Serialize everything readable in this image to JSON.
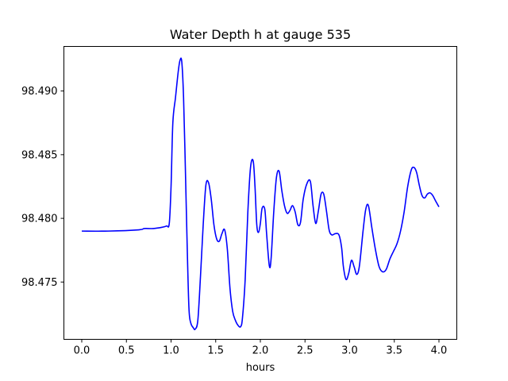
{
  "chart_data": {
    "type": "line",
    "title": "Water Depth h at gauge 535",
    "xlabel": "hours",
    "ylabel": "",
    "xlim": [
      -0.2,
      4.2
    ],
    "ylim": [
      98.4705,
      98.4935
    ],
    "xticks": [
      0.0,
      0.5,
      1.0,
      1.5,
      2.0,
      2.5,
      3.0,
      3.5,
      4.0
    ],
    "xtick_labels": [
      "0.0",
      "0.5",
      "1.0",
      "1.5",
      "2.0",
      "2.5",
      "3.0",
      "3.5",
      "4.0"
    ],
    "yticks": [
      98.475,
      98.48,
      98.485,
      98.49
    ],
    "ytick_labels": [
      "98.475",
      "98.480",
      "98.485",
      "98.490"
    ],
    "grid": false,
    "series": [
      {
        "color": "#0000ff",
        "x": [
          0.0,
          0.3,
          0.64,
          0.7,
          0.8,
          0.9,
          0.95,
          0.98,
          1.0,
          1.02,
          1.05,
          1.08,
          1.1,
          1.12,
          1.14,
          1.16,
          1.18,
          1.2,
          1.22,
          1.25,
          1.27,
          1.3,
          1.33,
          1.36,
          1.39,
          1.42,
          1.45,
          1.48,
          1.51,
          1.54,
          1.57,
          1.6,
          1.63,
          1.66,
          1.69,
          1.72,
          1.75,
          1.78,
          1.8,
          1.83,
          1.86,
          1.89,
          1.92,
          1.94,
          1.96,
          1.98,
          2.0,
          2.02,
          2.05,
          2.07,
          2.1,
          2.12,
          2.15,
          2.18,
          2.21,
          2.24,
          2.27,
          2.3,
          2.33,
          2.36,
          2.39,
          2.42,
          2.45,
          2.48,
          2.52,
          2.56,
          2.59,
          2.62,
          2.65,
          2.68,
          2.71,
          2.74,
          2.77,
          2.8,
          2.84,
          2.88,
          2.91,
          2.93,
          2.96,
          2.99,
          3.02,
          3.05,
          3.08,
          3.11,
          3.15,
          3.18,
          3.21,
          3.25,
          3.29,
          3.33,
          3.37,
          3.41,
          3.45,
          3.49,
          3.53,
          3.57,
          3.61,
          3.65,
          3.69,
          3.72,
          3.75,
          3.78,
          3.81,
          3.84,
          3.87,
          3.9,
          3.93,
          3.96,
          4.0
        ],
        "y": [
          98.479,
          98.479,
          98.4791,
          98.4792,
          98.4792,
          98.4793,
          98.4794,
          98.4796,
          98.4825,
          98.4875,
          98.4895,
          98.4915,
          98.4924,
          98.4923,
          98.4895,
          98.484,
          98.478,
          98.473,
          98.4718,
          98.4714,
          98.4713,
          98.472,
          98.4755,
          98.4795,
          98.4826,
          98.4828,
          98.4815,
          98.4795,
          98.4784,
          98.4782,
          98.4788,
          98.4791,
          98.4776,
          98.4745,
          98.4727,
          98.472,
          98.4716,
          98.4715,
          98.4722,
          98.4752,
          98.4805,
          98.484,
          98.4845,
          98.4825,
          98.4795,
          98.4789,
          98.4796,
          98.4808,
          98.4807,
          98.4788,
          98.4763,
          98.4768,
          98.4805,
          98.4832,
          98.4837,
          98.4822,
          98.481,
          98.4804,
          98.4806,
          98.481,
          98.4805,
          98.4795,
          98.4797,
          98.4815,
          98.4827,
          98.4829,
          98.481,
          98.4796,
          98.4806,
          98.4819,
          98.4819,
          98.4806,
          98.4791,
          98.4787,
          98.4788,
          98.4787,
          98.4777,
          98.4762,
          98.4752,
          98.4757,
          98.4767,
          98.4762,
          98.4756,
          98.4763,
          98.479,
          98.4807,
          98.481,
          98.4792,
          98.4775,
          98.4762,
          98.4758,
          98.476,
          98.4768,
          98.4774,
          98.478,
          98.479,
          98.4805,
          98.4825,
          98.4838,
          98.484,
          98.4836,
          98.4826,
          98.4818,
          98.4816,
          98.4819,
          98.482,
          98.4818,
          98.4814,
          98.4809
        ]
      }
    ]
  }
}
